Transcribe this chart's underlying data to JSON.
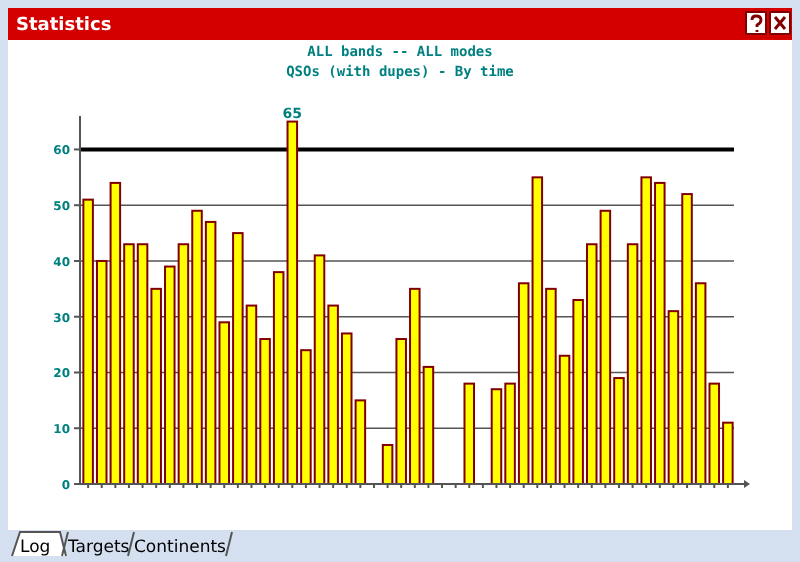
{
  "chart_data": {
    "type": "bar",
    "title": "ALL bands -- ALL modes",
    "subtitle": "QSOs (with dupes) - By time",
    "annotations": [
      "Statistics",
      "Log",
      "Targets",
      "Continents"
    ],
    "categories": [
      null,
      null,
      null,
      null,
      null,
      null,
      null,
      null,
      null,
      null,
      null,
      null,
      null,
      null,
      null,
      null,
      null,
      null,
      null,
      null,
      null,
      null,
      null,
      null,
      null,
      null,
      null,
      null,
      null,
      null,
      null,
      null,
      null,
      null,
      null,
      null,
      null,
      null,
      null,
      null,
      null,
      null,
      null,
      null,
      null,
      null,
      null,
      null
    ],
    "values": [
      51,
      40,
      54,
      43,
      43,
      35,
      39,
      43,
      49,
      47,
      29,
      45,
      32,
      26,
      38,
      65,
      24,
      41,
      32,
      27,
      15,
      0,
      7,
      26,
      35,
      21,
      0,
      0,
      18,
      0,
      17,
      18,
      36,
      55,
      35,
      23,
      33,
      43,
      49,
      19,
      43,
      55,
      54,
      31,
      52,
      36,
      18,
      11
    ],
    "value_labels": [
      null,
      null,
      null,
      null,
      null,
      null,
      null,
      null,
      null,
      null,
      null,
      null,
      null,
      null,
      null,
      "65",
      null,
      null,
      null,
      null,
      null,
      null,
      null,
      null,
      null,
      null,
      null,
      null,
      null,
      null,
      null,
      null,
      null,
      null,
      null,
      null,
      null,
      null,
      null,
      null,
      null,
      null,
      null,
      null,
      null,
      null,
      null,
      null
    ],
    "color": "#ffff00",
    "ylim": [
      0,
      66
    ],
    "yticks": [
      0,
      10,
      20,
      30,
      40,
      50,
      60
    ],
    "grid": "y",
    "ref_lines": [
      {
        "axis": "y",
        "value": 60,
        "color": "#000000"
      }
    ]
  }
}
